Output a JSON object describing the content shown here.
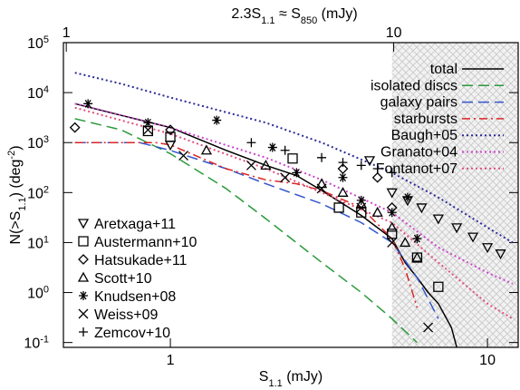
{
  "chart_data": {
    "type": "line",
    "log_x": true,
    "log_y": true,
    "xlabel": [
      "S",
      "1.1",
      " (mJy)"
    ],
    "ylabel": [
      "N(>S",
      "1.1",
      ") (deg",
      "-2",
      ")"
    ],
    "x2label": [
      "2.3S",
      "1.1",
      " ≈ S",
      "850",
      " (mJy)"
    ],
    "xlim": [
      0.46,
      12.5
    ],
    "xticks": [
      1,
      10
    ],
    "x2lim": [
      0.98,
      24
    ],
    "x2ticks": [
      1,
      10
    ],
    "ylim": [
      0.08,
      100000
    ],
    "yticks": [
      {
        "value": 0.1,
        "label": "10",
        "exponent": "-1"
      },
      {
        "value": 1,
        "label": "10",
        "exponent": "0"
      },
      {
        "value": 10,
        "label": "10",
        "exponent": "1"
      },
      {
        "value": 100,
        "label": "10",
        "exponent": "2"
      },
      {
        "value": 1000,
        "label": "10",
        "exponent": "3"
      },
      {
        "value": 10000,
        "label": "10",
        "exponent": "4"
      },
      {
        "value": 100000,
        "label": "10",
        "exponent": "5"
      }
    ],
    "shaded_from": 5,
    "series": [
      {
        "name": "total",
        "color": "#000000",
        "style": "solid",
        "x": [
          0.5,
          0.7,
          1.0,
          1.5,
          2.0,
          2.5,
          3.0,
          4.0,
          5.0,
          5.5,
          6.0,
          6.5,
          7.0,
          7.7,
          8.0
        ],
        "values": [
          6000,
          3500,
          2000,
          700,
          350,
          220,
          110,
          35,
          12,
          4,
          2,
          1,
          0.6,
          0.2,
          0.08
        ]
      },
      {
        "name": "isolated discs",
        "color": "#2a9a3a",
        "style": "dashed",
        "x": [
          0.5,
          0.7,
          1.0,
          1.5,
          2.0,
          3.0,
          4.0,
          5.0,
          6.0
        ],
        "values": [
          3000,
          1800,
          600,
          120,
          30,
          4,
          1,
          0.3,
          0.1
        ]
      },
      {
        "name": "galaxy pairs",
        "color": "#3355cc",
        "style": "dashed",
        "x": [
          0.5,
          0.8,
          1.0,
          1.5,
          2.0,
          3.0,
          4.0,
          5.0,
          6.0,
          7.0
        ],
        "values": [
          1000,
          1000,
          700,
          300,
          150,
          60,
          25,
          10,
          2,
          0.3
        ]
      },
      {
        "name": "starbursts",
        "color": "#dd2222",
        "style": "dashdot",
        "x": [
          0.5,
          0.9,
          1.0,
          1.5,
          2.0,
          2.5,
          3.0,
          4.0,
          5.0,
          5.5,
          6.0
        ],
        "values": [
          1000,
          1000,
          900,
          300,
          180,
          150,
          110,
          50,
          12,
          3,
          0.5
        ]
      },
      {
        "name": "Baugh+05",
        "color": "#2a2a99",
        "style": "dotted",
        "x": [
          0.5,
          0.7,
          1.0,
          2.0,
          3.0,
          5.0,
          7.0,
          10.0,
          12.0
        ],
        "values": [
          25000,
          15000,
          8000,
          2500,
          1000,
          250,
          80,
          20,
          10
        ]
      },
      {
        "name": "Granato+04",
        "color": "#cc44cc",
        "style": "dotted",
        "x": [
          0.5,
          1.0,
          2.0,
          3.0,
          5.0,
          7.0,
          10.0,
          12.0
        ],
        "values": [
          6000,
          2000,
          500,
          180,
          40,
          8,
          2.5,
          1.5
        ]
      },
      {
        "name": "Fontanot+07",
        "color": "#e0507a",
        "style": "dotted",
        "x": [
          0.5,
          1.0,
          2.0,
          3.0,
          5.0,
          7.0,
          10.0,
          12.0
        ],
        "values": [
          5000,
          1500,
          300,
          100,
          25,
          4,
          0.6,
          0.3
        ]
      }
    ],
    "points": [
      {
        "name": "Aretxaga+11",
        "marker": "down-triangle",
        "x": [
          1.0,
          4.25,
          5.0,
          5.6,
          6.2,
          7.0,
          8.0,
          9.0,
          10.0,
          11.0
        ],
        "values": [
          900,
          440,
          100,
          70,
          50,
          30,
          20,
          13,
          8,
          6
        ]
      },
      {
        "name": "Austermann+10",
        "marker": "square",
        "x": [
          0.85,
          1.0,
          2.43,
          3.4,
          4.0,
          5.0,
          6.0,
          7.0
        ],
        "values": [
          1700,
          1300,
          480,
          50,
          40,
          15,
          5,
          1.3
        ]
      },
      {
        "name": "Hatsukade+11",
        "marker": "diamond",
        "x": [
          0.5,
          1.0,
          3.5,
          4.5,
          5.0
        ],
        "values": [
          2000,
          1800,
          300,
          200,
          50
        ]
      },
      {
        "name": "Scott+10",
        "marker": "triangle",
        "x": [
          1.3,
          2.0,
          3.0,
          3.5,
          4.0,
          4.5,
          5.0,
          5.5,
          6.0
        ],
        "values": [
          700,
          350,
          150,
          100,
          60,
          40,
          20,
          10,
          5
        ]
      },
      {
        "name": "Knudsen+08",
        "marker": "asterisk",
        "x": [
          0.55,
          0.85,
          1.4,
          2.1,
          2.5,
          3.5,
          4.0,
          5.0,
          5.6,
          6.0
        ],
        "values": [
          6000,
          2500,
          2800,
          800,
          250,
          200,
          70,
          40,
          80,
          12
        ]
      },
      {
        "name": "Weiss+09",
        "marker": "x",
        "x": [
          0.85,
          1.1,
          1.8,
          2.3,
          3.0,
          4.0,
          5.0,
          6.5
        ],
        "values": [
          1800,
          550,
          350,
          200,
          120,
          50,
          10,
          0.2
        ]
      },
      {
        "name": "Zemcov+10",
        "marker": "plus",
        "x": [
          1.8,
          2.3,
          3.0,
          3.5,
          4.0,
          4.5,
          5.0
        ],
        "values": [
          1000,
          700,
          500,
          400,
          350,
          300,
          250
        ]
      }
    ]
  }
}
